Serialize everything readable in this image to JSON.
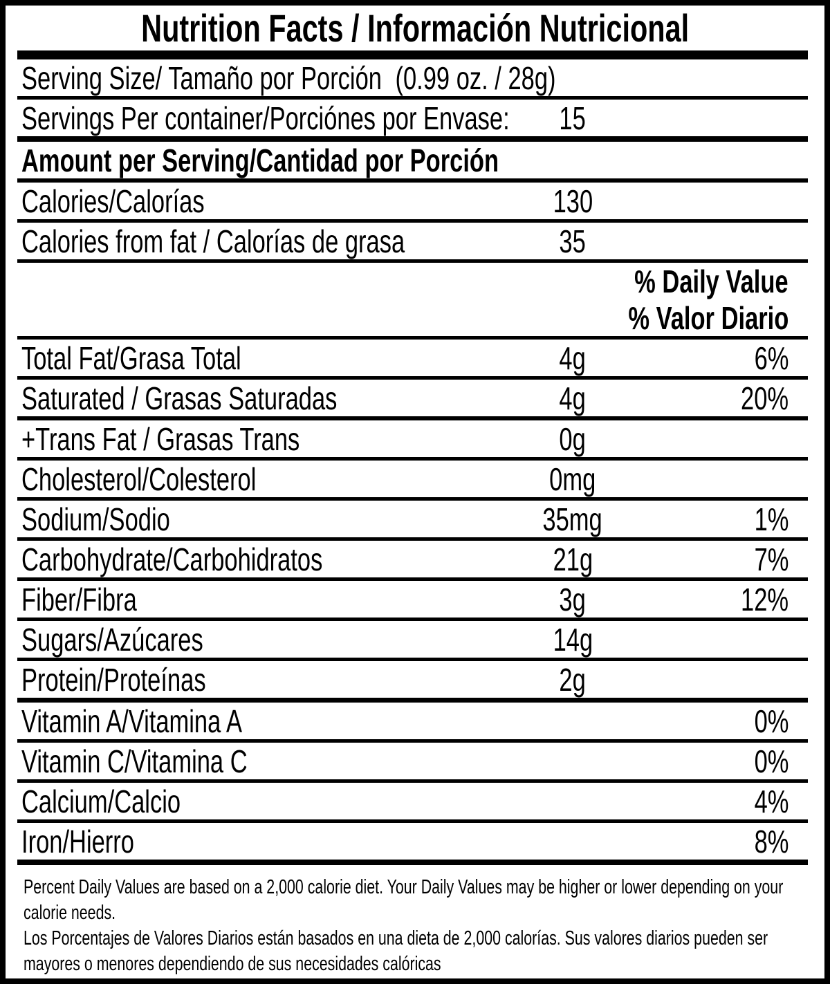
{
  "title": "Nutrition Facts / Información Nutricional",
  "serving": {
    "size_label": "Serving Size/ Tamaño por Porción",
    "size_value": "(0.99 oz. / 28g)",
    "per_container_label": "Servings Per container/Porciónes por Envase:",
    "per_container_value": "15"
  },
  "amount_per_serving_header": "Amount per Serving/Cantidad por Porción",
  "calories": {
    "label": "Calories/Calorías",
    "value": "130"
  },
  "calories_from_fat": {
    "label": "Calories from fat / Calorías de grasa",
    "value": "35"
  },
  "daily_value_header": {
    "en": "% Daily Value",
    "es": "% Valor Diario"
  },
  "nutrients": [
    {
      "label": "Total Fat/Grasa Total",
      "amount": "4g",
      "dv": "6%"
    },
    {
      "label": "Saturated / Grasas Saturadas",
      "amount": "4g",
      "dv": "20%"
    },
    {
      "label": "+Trans Fat / Grasas Trans",
      "amount": "0g",
      "dv": ""
    },
    {
      "label": "Cholesterol/Colesterol",
      "amount": "0mg",
      "dv": ""
    },
    {
      "label": "Sodium/Sodio",
      "amount": "35mg",
      "dv": "1%"
    },
    {
      "label": "Carbohydrate/Carbohidratos",
      "amount": "21g",
      "dv": "7%"
    },
    {
      "label": "Fiber/Fibra",
      "amount": "3g",
      "dv": "12%"
    },
    {
      "label": "Sugars/Azúcares",
      "amount": "14g",
      "dv": ""
    },
    {
      "label": "Protein/Proteínas",
      "amount": "2g",
      "dv": ""
    },
    {
      "label": "Vitamin A/Vitamina A",
      "amount": "",
      "dv": "0%"
    },
    {
      "label": "Vitamin C/Vitamina C",
      "amount": "",
      "dv": "0%"
    },
    {
      "label": "Calcium/Calcio",
      "amount": "",
      "dv": "4%"
    },
    {
      "label": "Iron/Hierro",
      "amount": "",
      "dv": "8%"
    }
  ],
  "footnotes": {
    "en": "Percent Daily Values are based on a 2,000 calorie diet. Your Daily Values may be higher or lower depending on your calorie needs.",
    "es": "Los Porcentajes de Valores Diarios están basados en una dieta de 2,000 calorías. Sus valores diarios pueden ser mayores o menores dependiendo de sus necesidades calóricas"
  },
  "colors": {
    "ink": "#000000",
    "paper": "#ffffff"
  }
}
